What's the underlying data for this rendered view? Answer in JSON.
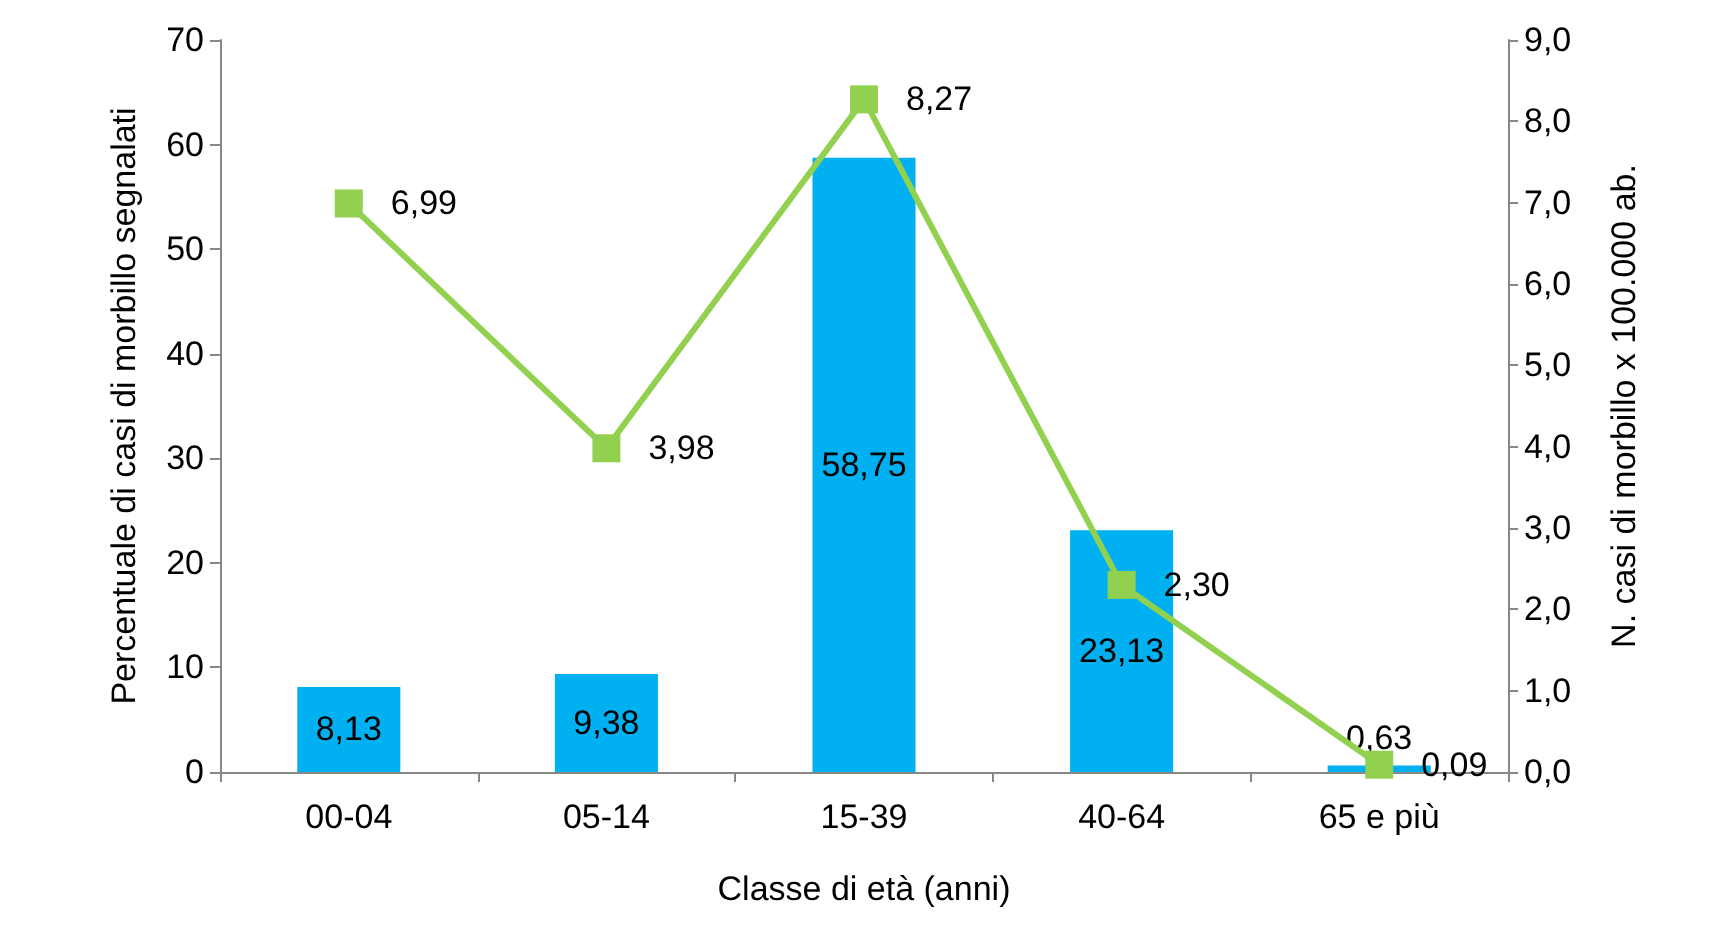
{
  "chart_data": {
    "type": "bar",
    "xlabel": "Classe di età (anni)",
    "ylabel": "Percentuale di casi di morbillo segnalati",
    "y2label": "N. casi di morbillo x 100.000 ab.",
    "categories": [
      "00-04",
      "05-14",
      "15-39",
      "40-64",
      "65 e più"
    ],
    "series": [
      {
        "color": "#00b0f0",
        "values": [
          8.13,
          9.38,
          58.75,
          23.13,
          0.63
        ],
        "value_labels": [
          "8,13",
          "9,38",
          "58,75",
          "23,13",
          "0,63"
        ]
      },
      {
        "type": "line",
        "axis": "y2",
        "color": "#92d050",
        "marker": "square",
        "values": [
          6.99,
          3.98,
          8.27,
          2.3,
          0.09
        ],
        "value_labels": [
          "6,99",
          "3,98",
          "8,27",
          "2,30",
          "0,09"
        ]
      }
    ],
    "ylim": [
      0,
      70
    ],
    "yticks": [
      0,
      10,
      20,
      30,
      40,
      50,
      60,
      70
    ],
    "y2lim": [
      0,
      9
    ],
    "y2ticks": [
      {
        "value": 0,
        "label": "0,0"
      },
      {
        "value": 1,
        "label": "1,0"
      },
      {
        "value": 2,
        "label": "2,0"
      },
      {
        "value": 3,
        "label": "3,0"
      },
      {
        "value": 4,
        "label": "4,0"
      },
      {
        "value": 5,
        "label": "5,0"
      },
      {
        "value": 6,
        "label": "6,0"
      },
      {
        "value": 7,
        "label": "7,0"
      },
      {
        "value": 8,
        "label": "8,0"
      },
      {
        "value": 9,
        "label": "9,0"
      }
    ],
    "grid": false
  }
}
